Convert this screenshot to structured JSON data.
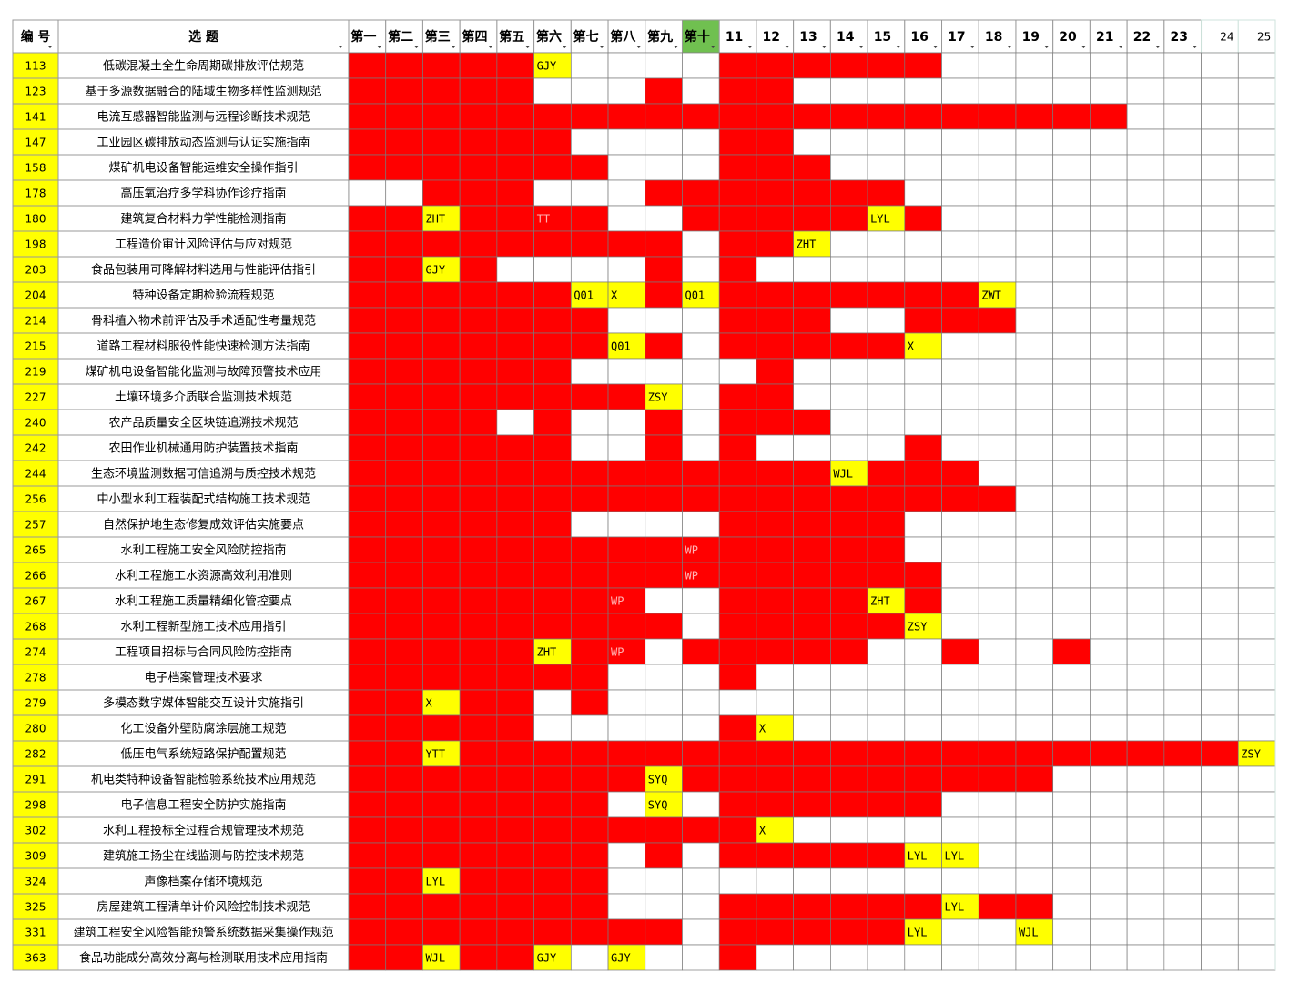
{
  "table": {
    "headers": {
      "id": "编 号",
      "title": "选 题",
      "columns": [
        "第一",
        "第二",
        "第三",
        "第四",
        "第五",
        "第六",
        "第七",
        "第八",
        "第九",
        "第十",
        "11",
        "12",
        "13",
        "14",
        "15",
        "16",
        "17",
        "18",
        "19",
        "20",
        "21",
        "22",
        "23",
        "24",
        "25"
      ],
      "active_column": 9
    },
    "fill_colors": {
      "R": "#ff0000",
      "W": "#ffffff",
      "Y": "#ffff00",
      "T": "#ff0000"
    },
    "rows": [
      {
        "id": 113,
        "title": "低碳混凝土全生命周期碳排放评估规范",
        "fills": "RRRRRYWWWWRRRRRRWWWWWWWWW",
        "labels": [
          "GJY"
        ]
      },
      {
        "id": 123,
        "title": "基于多源数据融合的陆域生物多样性监测规范",
        "fills": "RRRRRWWWRWRRWWWWWWWWWWWWW",
        "labels": []
      },
      {
        "id": 141,
        "title": "电流互感器智能监测与远程诊断技术规范",
        "fills": "RRRRRRRRRRRRRRRRRRRRRWWWW",
        "labels": []
      },
      {
        "id": 147,
        "title": "工业园区碳排放动态监测与认证实施指南",
        "fills": "RRRRRRWWWWRRWWWWWWWWWWWWW",
        "labels": []
      },
      {
        "id": 158,
        "title": "煤矿机电设备智能运维安全操作指引",
        "fills": "RRRRRRRWWWRRRWWWWWWWWWWWW",
        "labels": []
      },
      {
        "id": 178,
        "title": "高压氧治疗多学科协作诊疗指南",
        "fills": "WWRRRWWWRRRRRRRWWWWWWWWWW",
        "labels": []
      },
      {
        "id": 180,
        "title": "建筑复合材料力学性能检测指南",
        "fills": "RRYRRTRWWRRRRRYRWWWWWWWWW",
        "labels": [
          "ZHT",
          "TT",
          "LYL"
        ]
      },
      {
        "id": 198,
        "title": "工程造价审计风险评估与应对规范",
        "fills": "RRRRRRRRRWRRYWWWWWWWWWWWW",
        "labels": [
          "ZHT"
        ]
      },
      {
        "id": 203,
        "title": "食品包装用可降解材料选用与性能评估指引",
        "fills": "RRYRWWWWRWRWWWWWWWWWWWWWW",
        "labels": [
          "GJY"
        ]
      },
      {
        "id": 204,
        "title": "特种设备定期检验流程规范",
        "fills": "RRRRRRYYRYRRRRRRRYWWWWWWW",
        "labels": [
          "Q01",
          "X",
          "Q01",
          "ZWT"
        ]
      },
      {
        "id": 214,
        "title": "骨科植入物术前评估及手术适配性考量规范",
        "fills": "RRRRRRRWWWRRRWWRRRWWWWWWW",
        "labels": []
      },
      {
        "id": 215,
        "title": "道路工程材料服役性能快速检测方法指南",
        "fills": "RRRRRRRYRWRRRRRYWWWWWWWWW",
        "labels": [
          "Q01",
          "X"
        ]
      },
      {
        "id": 219,
        "title": "煤矿机电设备智能化监测与故障预警技术应用",
        "fills": "RRRRRRWWWWWRWWWWWWWWWWWWW",
        "labels": []
      },
      {
        "id": 227,
        "title": "土壤环境多介质联合监测技术规范",
        "fills": "RRRRRRRRYWRRWWWWWWWWWWWWW",
        "labels": [
          "ZSY"
        ]
      },
      {
        "id": 240,
        "title": "农产品质量安全区块链追溯技术规范",
        "fills": "RRRRWRWWRWRRRWWWWWWWWWWWW",
        "labels": []
      },
      {
        "id": 242,
        "title": "农田作业机械通用防护装置技术指南",
        "fills": "RRRRRRWWRWRWWWWRWWWWWWWWW",
        "labels": []
      },
      {
        "id": 244,
        "title": "生态环境监测数据可信追溯与质控技术规范",
        "fills": "RRRRRRRRRRRRRYRRRWWWWWWWW",
        "labels": [
          "WJL"
        ]
      },
      {
        "id": 256,
        "title": "中小型水利工程装配式结构施工技术规范",
        "fills": "RRRRRRRRRRRRRRRRRRWWWWWWW",
        "labels": []
      },
      {
        "id": 257,
        "title": "自然保护地生态修复成效评估实施要点",
        "fills": "RRRRRRWWWWRRRRRWWWWWWWWWW",
        "labels": []
      },
      {
        "id": 265,
        "title": "水利工程施工安全风险防控指南",
        "fills": "RRRRRRRRRTRRRRRWWWWWWWWWW",
        "labels": [
          "WP"
        ]
      },
      {
        "id": 266,
        "title": "水利工程施工水资源高效利用准则",
        "fills": "RRRRRRRRRTRRRRRRWWWWWWWWW",
        "labels": [
          "WP"
        ]
      },
      {
        "id": 267,
        "title": "水利工程施工质量精细化管控要点",
        "fills": "RRRRRRRTWWRRRRYRWWWWWWWWW",
        "labels": [
          "WP",
          "ZHT"
        ]
      },
      {
        "id": 268,
        "title": "水利工程新型施工技术应用指引",
        "fills": "RRRRRRRRRWRRRRRYWWWWWWWWW",
        "labels": [
          "ZSY"
        ]
      },
      {
        "id": 274,
        "title": "工程项目招标与合同风险防控指南",
        "fills": "RRRRRYRTWRRRRRWWRWWRWWWWW",
        "labels": [
          "ZHT",
          "WP"
        ]
      },
      {
        "id": 278,
        "title": "电子档案管理技术要求",
        "fills": "RRRRRRRWWWRWWWWWWWWWWWWWW",
        "labels": []
      },
      {
        "id": 279,
        "title": "多模态数字媒体智能交互设计实施指引",
        "fills": "RRYRRWRWWWWWWWWWWWWWWWWWW",
        "labels": [
          "X"
        ]
      },
      {
        "id": 280,
        "title": "化工设备外壁防腐涂层施工规范",
        "fills": "RRRRRWWWWWRYWWWWWWWWWWWWW",
        "labels": [
          "X"
        ]
      },
      {
        "id": 282,
        "title": "低压电气系统短路保护配置规范",
        "fills": "RRYRRRRRRRRRRRRRRRRRRRRRY",
        "labels": [
          "YTT",
          "ZSY"
        ]
      },
      {
        "id": 291,
        "title": "机电类特种设备智能检验系统技术应用规范",
        "fills": "RRRRRRRRYRRRRRRRRRRWWWWWW",
        "labels": [
          "SYQ"
        ]
      },
      {
        "id": 298,
        "title": "电子信息工程安全防护实施指南",
        "fills": "RRRRRRRWYWRRRRRRWWWWWWWWW",
        "labels": [
          "SYQ"
        ]
      },
      {
        "id": 302,
        "title": "水利工程投标全过程合规管理技术规范",
        "fills": "RRRRRRRRRRRYWWWWWWWWWWWWW",
        "labels": [
          "X"
        ]
      },
      {
        "id": 309,
        "title": "建筑施工扬尘在线监测与防控技术规范",
        "fills": "RRRRRRRWRWRRRRRYYWWWWWWWW",
        "labels": [
          "LYL",
          "LYL"
        ]
      },
      {
        "id": 324,
        "title": "声像档案存储环境规范",
        "fills": "RRYRRRRWWWWWWWWWWWWWWWWWW",
        "labels": [
          "LYL"
        ]
      },
      {
        "id": 325,
        "title": "房屋建筑工程清单计价风险控制技术规范",
        "fills": "RRRRRRRWWWRRRRRRYRRWWWWWW",
        "labels": [
          "LYL"
        ]
      },
      {
        "id": 331,
        "title": "建筑工程安全风险智能预警系统数据采集操作规范",
        "fills": "RRRRRRRRRWRRRRRYWWYWWWWWW",
        "labels": [
          "LYL",
          "WJL"
        ]
      },
      {
        "id": 363,
        "title": "食品功能成分高效分离与检测联用技术应用指南",
        "fills": "RRYRRYWYWWRWWWWWWWWWWWWWW",
        "labels": [
          "WJL",
          "GJY",
          "GJY"
        ]
      }
    ]
  }
}
